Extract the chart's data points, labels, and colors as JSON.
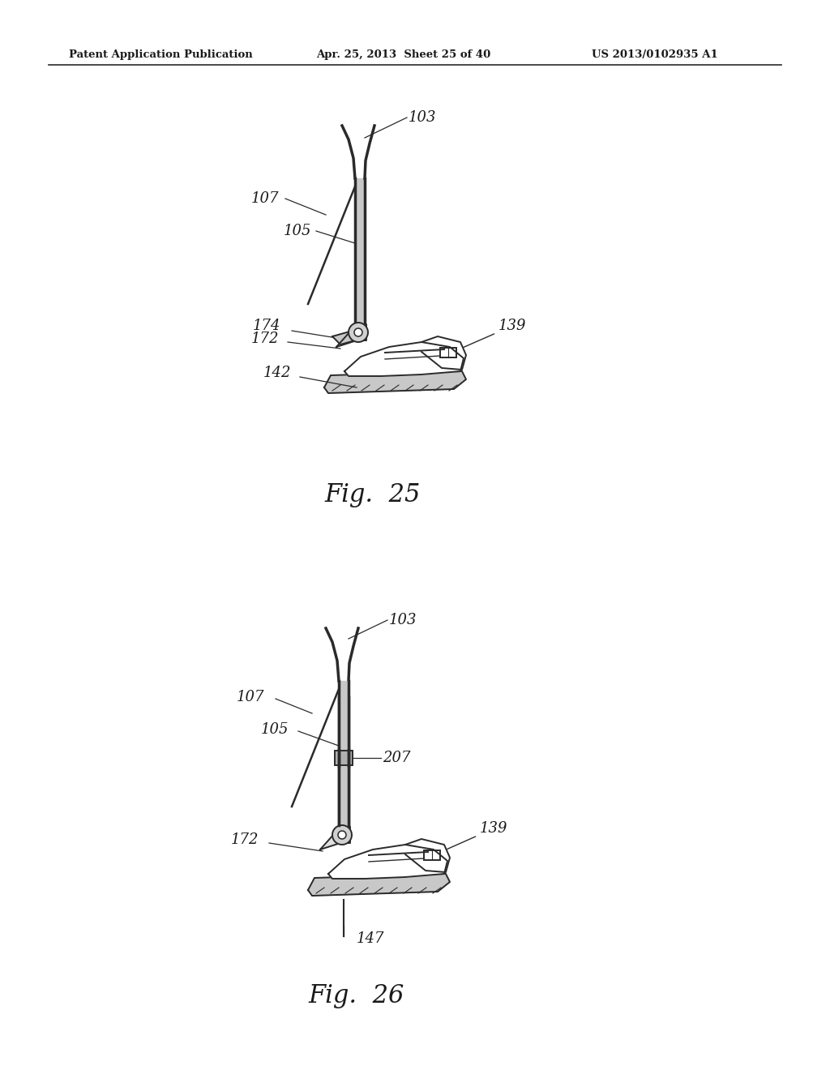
{
  "background_color": "#ffffff",
  "header_left": "Patent Application Publication",
  "header_center": "Apr. 25, 2013  Sheet 25 of 40",
  "header_right": "US 2013/0102935 A1",
  "fig25_label": "Fig.  25",
  "fig26_label": "Fig.  26",
  "text_color": "#1a1a1a",
  "line_color": "#2a2a2a"
}
